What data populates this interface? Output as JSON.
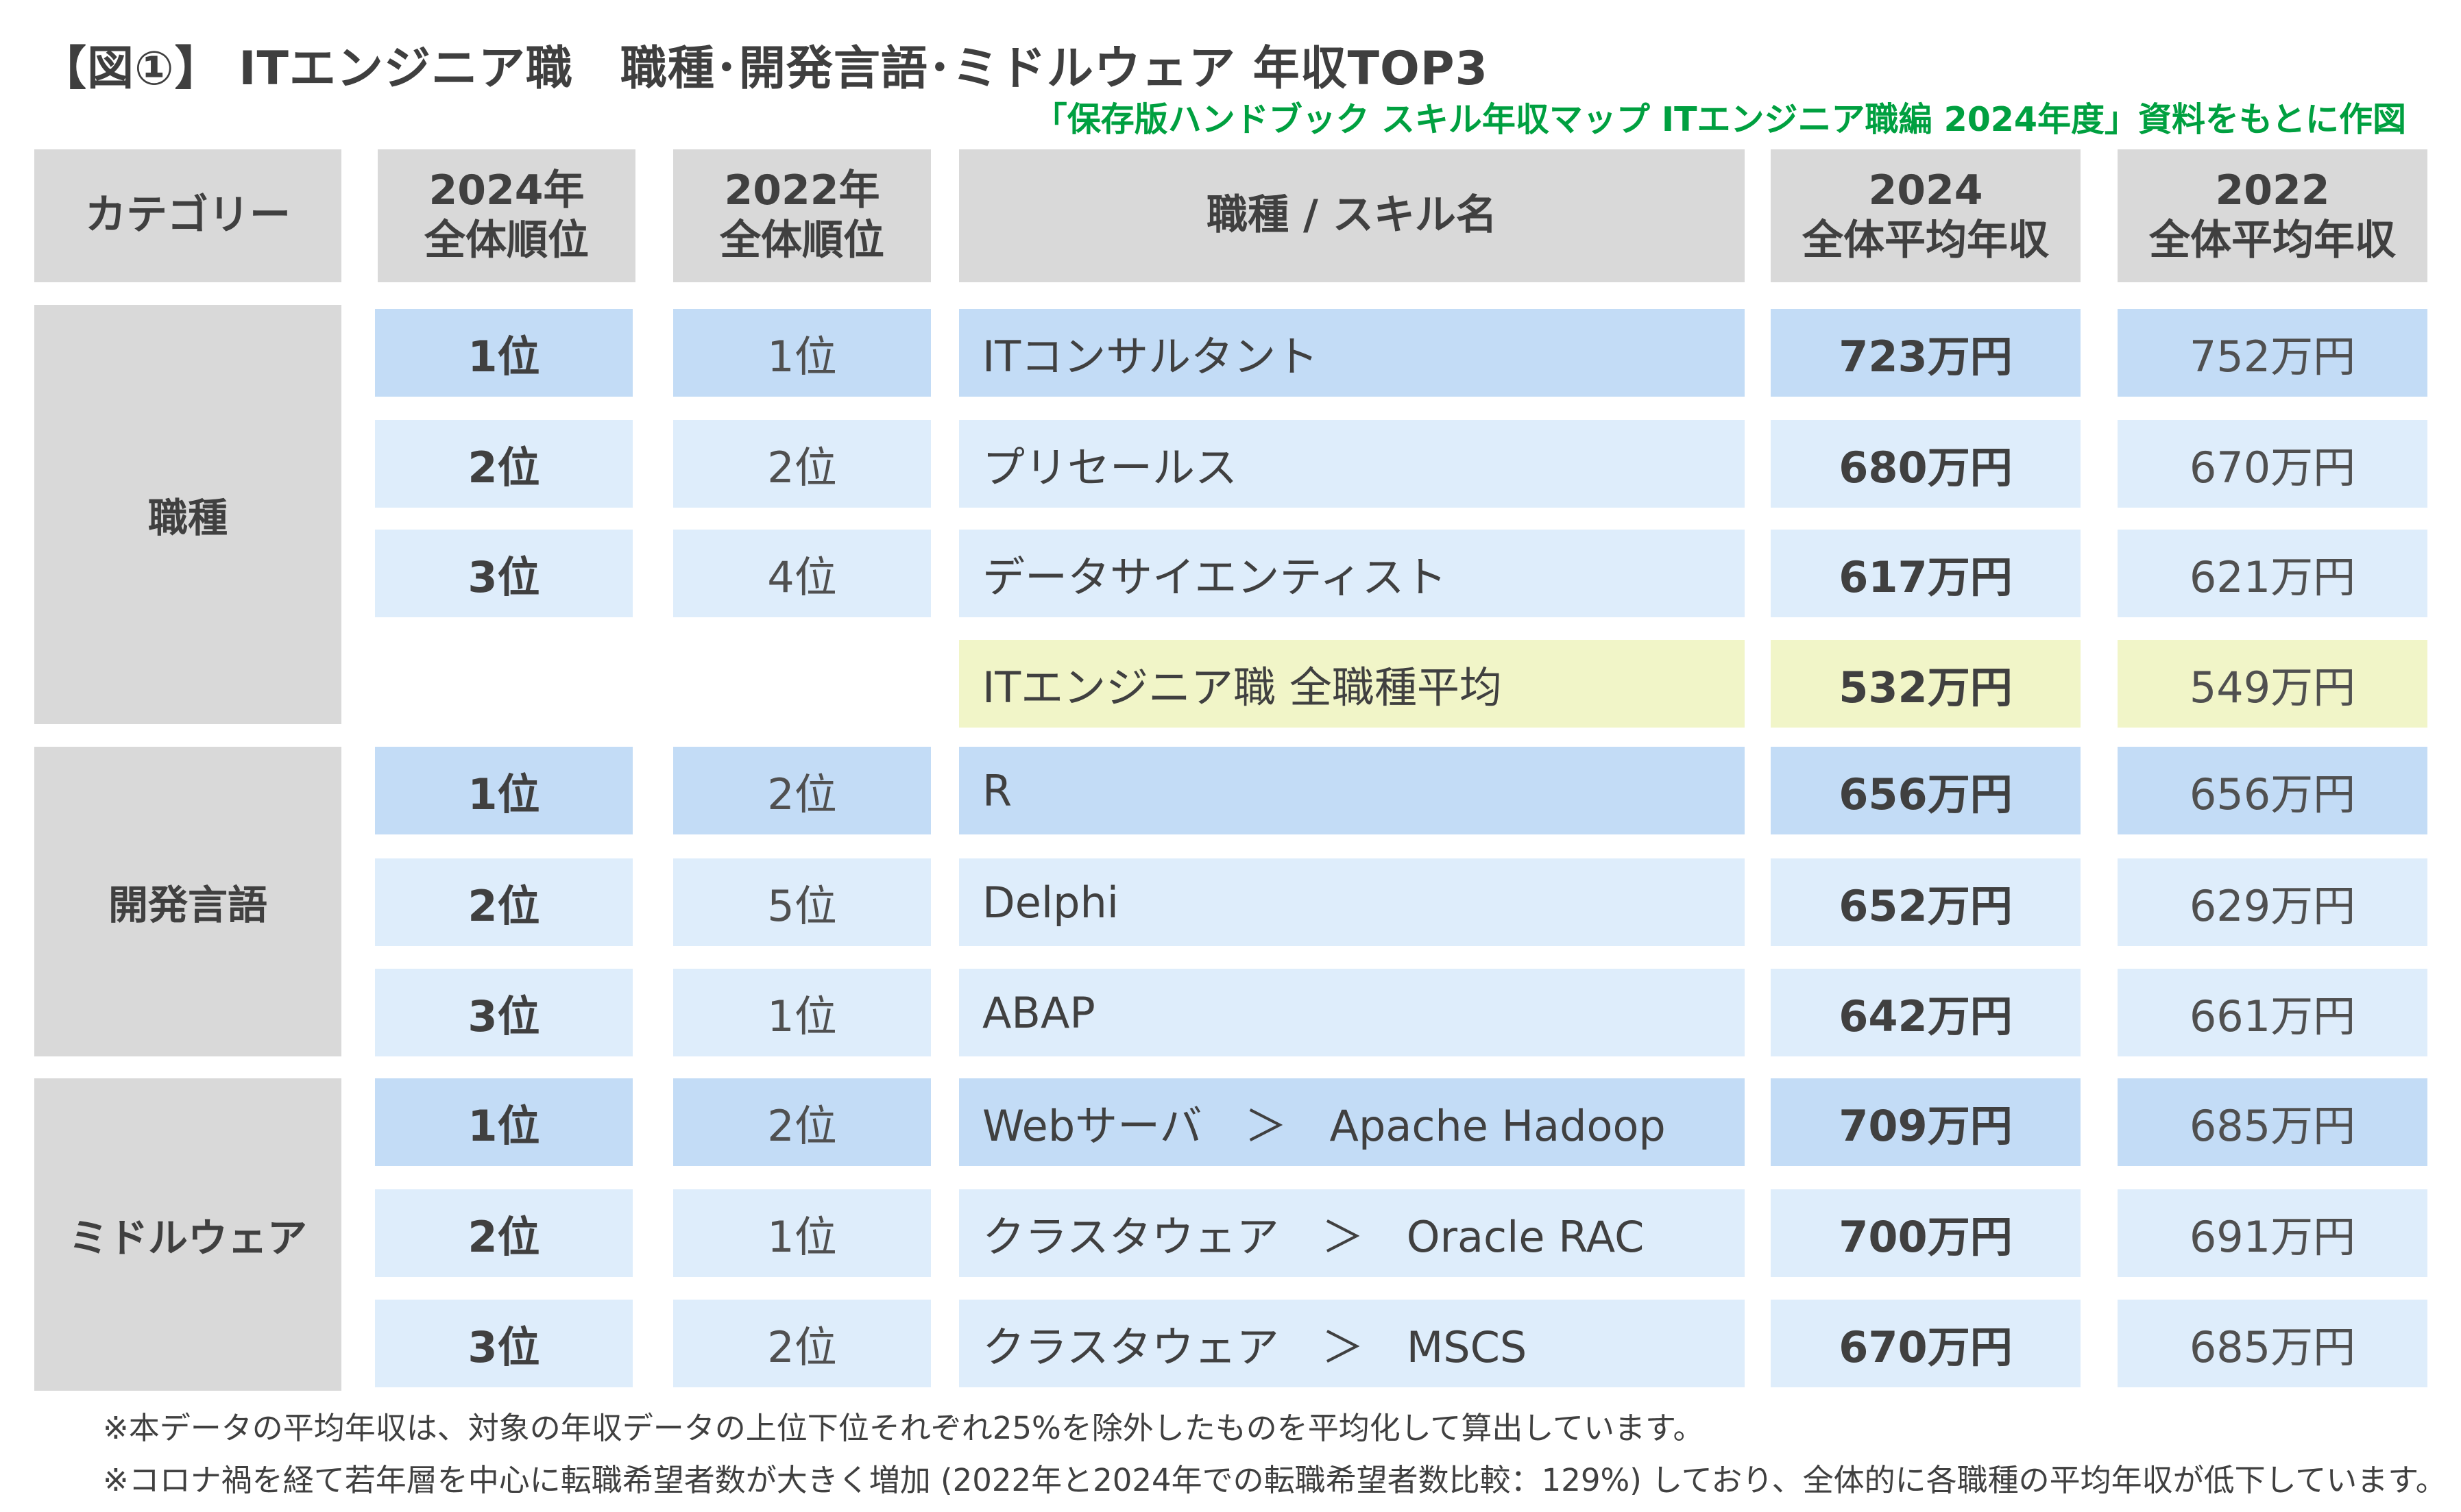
{
  "title": "【図①】 ITエンジニア職　職種･開発言語･ミドルウェア 年収TOP3",
  "source": "「保存版ハンドブック スキル年収マップ ITエンジニア職編 2024年度」資料をもとに作図",
  "headers": {
    "category": "カテゴリー",
    "rank2024_l1": "2024年",
    "rank2024_l2": "全体順位",
    "rank2022_l1": "2022年",
    "rank2022_l2": "全体順位",
    "name": "職種 / スキル名",
    "income2024_l1": "2024",
    "income2024_l2": "全体平均年収",
    "income2022_l1": "2022",
    "income2022_l2": "全体平均年収"
  },
  "categories": [
    "職種",
    "開発言語",
    "ミドルウェア"
  ],
  "rows": [
    {
      "rank2024": "1位",
      "rank2022": "1位",
      "name": "ITコンサルタント",
      "income2024": "723万円",
      "income2022": "752万円"
    },
    {
      "rank2024": "2位",
      "rank2022": "2位",
      "name": "プリセールス",
      "income2024": "680万円",
      "income2022": "670万円"
    },
    {
      "rank2024": "3位",
      "rank2022": "4位",
      "name": "データサイエンティスト",
      "income2024": "617万円",
      "income2022": "621万円"
    },
    {
      "rank2024": "",
      "rank2022": "",
      "name": "ITエンジニア職 全職種平均",
      "income2024": "532万円",
      "income2022": "549万円"
    },
    {
      "rank2024": "1位",
      "rank2022": "2位",
      "name": "R",
      "income2024": "656万円",
      "income2022": "656万円"
    },
    {
      "rank2024": "2位",
      "rank2022": "5位",
      "name": "Delphi",
      "income2024": "652万円",
      "income2022": "629万円"
    },
    {
      "rank2024": "3位",
      "rank2022": "1位",
      "name": "ABAP",
      "income2024": "642万円",
      "income2022": "661万円"
    },
    {
      "rank2024": "1位",
      "rank2022": "2位",
      "name": "Webサーバ　＞　Apache Hadoop",
      "income2024": "709万円",
      "income2022": "685万円"
    },
    {
      "rank2024": "2位",
      "rank2022": "1位",
      "name": "クラスタウェア　＞　Oracle RAC",
      "income2024": "700万円",
      "income2022": "691万円"
    },
    {
      "rank2024": "3位",
      "rank2022": "2位",
      "name": "クラスタウェア　＞　MSCS",
      "income2024": "670万円",
      "income2022": "685万円"
    }
  ],
  "notes": [
    "※本データの平均年収は、対象の年収データの上位下位それぞれ25%を除外したものを平均化して算出しています。",
    "※コロナ禍を経て若年層を中心に転職希望者数が大きく増加 (2022年と2024年での転職希望者数比較：129%) しており、全体的に各職種の平均年収が低下しています。"
  ]
}
